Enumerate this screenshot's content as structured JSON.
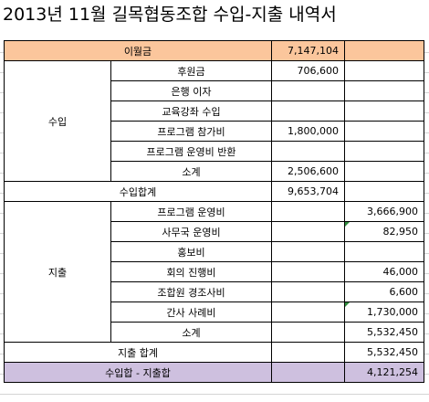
{
  "title": "2013년 11월 길목협동조합 수입-지출 내역서",
  "balance": {
    "label": "이월금",
    "amount": "7,147,104"
  },
  "income": {
    "group": "수입",
    "rows": [
      {
        "item": "후원금",
        "amount": "706,600"
      },
      {
        "item": "은행 이자",
        "amount": ""
      },
      {
        "item": "교육강좌 수입",
        "amount": ""
      },
      {
        "item": "프로그램 참가비",
        "amount": "1,800,000"
      },
      {
        "item": "프로그램 운영비 반환",
        "amount": ""
      },
      {
        "item": "소계",
        "amount": "2,506,600"
      }
    ],
    "total_label": "수입합계",
    "total_amount": "9,653,704"
  },
  "expense": {
    "group": "지출",
    "rows": [
      {
        "item": "프로그램 운영비",
        "amount": "3,666,900"
      },
      {
        "item": "사무국 운영비",
        "amount": "82,950"
      },
      {
        "item": "홍보비",
        "amount": ""
      },
      {
        "item": "회의 진행비",
        "amount": "46,000"
      },
      {
        "item": "조합원 경조사비",
        "amount": "6,600"
      },
      {
        "item": "간사 사례비",
        "amount": "1,730,000"
      },
      {
        "item": "소계",
        "amount": "5,532,450"
      }
    ],
    "total_label": "지출 합계",
    "total_amount": "5,532,450"
  },
  "net": {
    "label": "수입합 - 지출합",
    "amount": "4,121,254"
  },
  "colors": {
    "balance_fill": "#fbc69c",
    "net_fill": "#cec0df",
    "comment_marker": "#2e8b3c"
  }
}
